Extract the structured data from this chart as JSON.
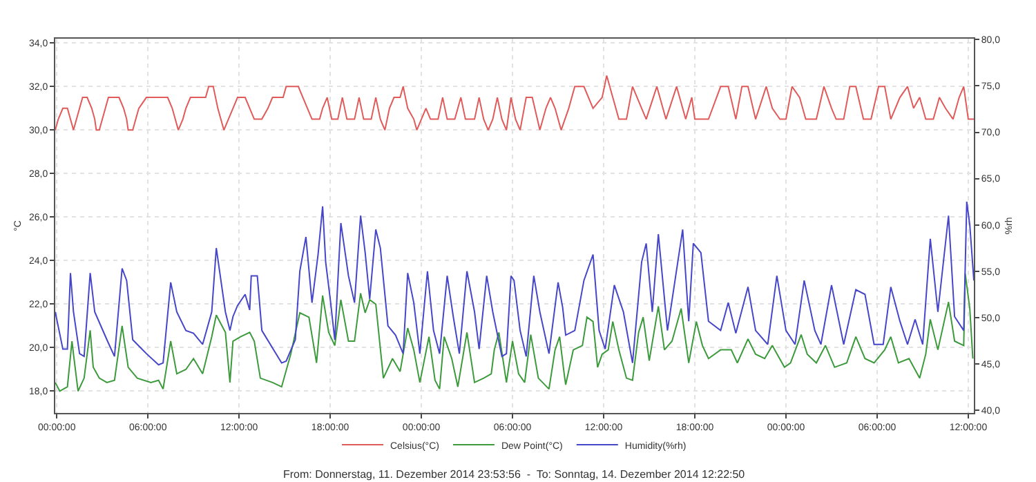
{
  "chart_data": {
    "type": "line",
    "ylabel": "°C",
    "y2label": "%rh",
    "xlim": [
      "2014-12-11T23:54",
      "2014-12-14T12:22"
    ],
    "xticks": [
      {
        "value": "2014-12-12T00:00",
        "label": "00:00:00"
      },
      {
        "value": "2014-12-12T06:00",
        "label": "06:00:00"
      },
      {
        "value": "2014-12-12T12:00",
        "label": "12:00:00"
      },
      {
        "value": "2014-12-12T18:00",
        "label": "18:00:00"
      },
      {
        "value": "2014-12-13T00:00",
        "label": "00:00:00"
      },
      {
        "value": "2014-12-13T06:00",
        "label": "06:00:00"
      },
      {
        "value": "2014-12-13T12:00",
        "label": "12:00:00"
      },
      {
        "value": "2014-12-13T18:00",
        "label": "18:00:00"
      },
      {
        "value": "2014-12-14T00:00",
        "label": "00:00:00"
      },
      {
        "value": "2014-12-14T06:00",
        "label": "06:00:00"
      },
      {
        "value": "2014-12-14T12:00",
        "label": "12:00:00"
      }
    ],
    "ylim": [
      17.0,
      34.2
    ],
    "yticks": [
      {
        "value": 18,
        "label": "18,0"
      },
      {
        "value": 20,
        "label": "20,0"
      },
      {
        "value": 22,
        "label": "22,0"
      },
      {
        "value": 24,
        "label": "24,0"
      },
      {
        "value": 26,
        "label": "26,0"
      },
      {
        "value": 28,
        "label": "28,0"
      },
      {
        "value": 30,
        "label": "30,0"
      },
      {
        "value": 32,
        "label": "32,0"
      },
      {
        "value": 34,
        "label": "34,0"
      }
    ],
    "y2lim": [
      39.7,
      80.1
    ],
    "y2ticks": [
      {
        "value": 40,
        "label": "40,0"
      },
      {
        "value": 45,
        "label": "45,0"
      },
      {
        "value": 50,
        "label": "50,0"
      },
      {
        "value": 55,
        "label": "55,0"
      },
      {
        "value": 60,
        "label": "60,0"
      },
      {
        "value": 65,
        "label": "65,0"
      },
      {
        "value": 70,
        "label": "70,0"
      },
      {
        "value": 75,
        "label": "75,0"
      },
      {
        "value": 80,
        "label": "80,0"
      }
    ],
    "grid": true,
    "legend": "bottom",
    "annotations": [
      "From: Donnerstag, 11. Dezember 2014 23:53:56  -  To: Sonntag, 14. Dezember 2014 12:22:50"
    ],
    "series": [
      {
        "name": "Celsius(°C)",
        "color": "#e05a5a",
        "x": [
          "2014-12-11T23:54",
          "2014-12-12T00:06",
          "2014-12-12T00:24",
          "2014-12-12T00:42",
          "2014-12-12T00:54",
          "2014-12-12T01:06",
          "2014-12-12T01:18",
          "2014-12-12T01:30",
          "2014-12-12T01:42",
          "2014-12-12T02:00",
          "2014-12-12T02:18",
          "2014-12-12T02:30",
          "2014-12-12T02:36",
          "2014-12-12T02:48",
          "2014-12-12T03:00",
          "2014-12-12T03:12",
          "2014-12-12T03:24",
          "2014-12-12T04:06",
          "2014-12-12T04:24",
          "2014-12-12T04:36",
          "2014-12-12T04:42",
          "2014-12-12T05:00",
          "2014-12-12T05:12",
          "2014-12-12T05:24",
          "2014-12-12T05:54",
          "2014-12-12T07:18",
          "2014-12-12T07:36",
          "2014-12-12T07:48",
          "2014-12-12T08:00",
          "2014-12-12T08:18",
          "2014-12-12T08:30",
          "2014-12-12T08:48",
          "2014-12-12T09:48",
          "2014-12-12T10:00",
          "2014-12-12T10:18",
          "2014-12-12T10:36",
          "2014-12-12T11:00",
          "2014-12-12T11:18",
          "2014-12-12T11:36",
          "2014-12-12T11:54",
          "2014-12-12T12:24",
          "2014-12-12T12:42",
          "2014-12-12T13:00",
          "2014-12-12T13:30",
          "2014-12-12T13:54",
          "2014-12-12T14:12",
          "2014-12-12T14:54",
          "2014-12-12T15:06",
          "2014-12-12T15:54",
          "2014-12-12T16:12",
          "2014-12-12T16:30",
          "2014-12-12T16:48",
          "2014-12-12T17:18",
          "2014-12-12T17:30",
          "2014-12-12T17:48",
          "2014-12-12T18:06",
          "2014-12-12T18:30",
          "2014-12-12T18:48",
          "2014-12-12T19:06",
          "2014-12-12T19:36",
          "2014-12-12T19:54",
          "2014-12-12T20:12",
          "2014-12-12T20:42",
          "2014-12-12T21:00",
          "2014-12-12T21:18",
          "2014-12-12T21:36",
          "2014-12-12T21:54",
          "2014-12-12T22:12",
          "2014-12-12T22:36",
          "2014-12-12T22:48",
          "2014-12-12T23:06",
          "2014-12-12T23:30",
          "2014-12-12T23:42",
          "2014-12-13T00:00",
          "2014-12-13T00:18",
          "2014-12-13T00:36",
          "2014-12-13T01:06",
          "2014-12-13T01:24",
          "2014-12-13T01:42",
          "2014-12-13T02:12",
          "2014-12-13T02:36",
          "2014-12-13T02:54",
          "2014-12-13T03:30",
          "2014-12-13T03:48",
          "2014-12-13T04:06",
          "2014-12-13T04:24",
          "2014-12-13T04:42",
          "2014-12-13T05:00",
          "2014-12-13T05:18",
          "2014-12-13T05:36",
          "2014-12-13T05:54",
          "2014-12-13T06:12",
          "2014-12-13T06:30",
          "2014-12-13T06:54",
          "2014-12-13T07:18",
          "2014-12-13T07:48",
          "2014-12-13T08:12",
          "2014-12-13T08:30",
          "2014-12-13T08:48",
          "2014-12-13T09:12",
          "2014-12-13T09:42",
          "2014-12-13T10:06",
          "2014-12-13T10:42",
          "2014-12-13T11:18",
          "2014-12-13T11:54",
          "2014-12-13T12:12",
          "2014-12-13T13:00",
          "2014-12-13T13:30",
          "2014-12-13T13:54",
          "2014-12-13T14:48",
          "2014-12-13T15:30",
          "2014-12-13T16:06",
          "2014-12-13T16:48",
          "2014-12-13T17:24",
          "2014-12-13T17:48",
          "2014-12-13T18:00",
          "2014-12-13T18:54",
          "2014-12-13T19:42",
          "2014-12-13T20:12",
          "2014-12-13T20:42",
          "2014-12-13T21:06",
          "2014-12-13T21:30",
          "2014-12-13T22:00",
          "2014-12-13T22:42",
          "2014-12-13T23:06",
          "2014-12-13T23:36",
          "2014-12-14T00:00",
          "2014-12-14T00:24",
          "2014-12-14T00:54",
          "2014-12-14T01:18",
          "2014-12-14T02:00",
          "2014-12-14T02:30",
          "2014-12-14T03:00",
          "2014-12-14T03:18",
          "2014-12-14T03:48",
          "2014-12-14T04:12",
          "2014-12-14T04:36",
          "2014-12-14T05:06",
          "2014-12-14T05:36",
          "2014-12-14T06:06",
          "2014-12-14T06:30",
          "2014-12-14T06:54",
          "2014-12-14T07:30",
          "2014-12-14T08:00",
          "2014-12-14T08:24",
          "2014-12-14T08:48",
          "2014-12-14T09:12",
          "2014-12-14T09:42",
          "2014-12-14T10:06",
          "2014-12-14T10:30",
          "2014-12-14T11:00",
          "2014-12-14T11:24",
          "2014-12-14T11:42",
          "2014-12-14T12:00",
          "2014-12-14T12:22"
        ],
        "values": [
          30.0,
          30.5,
          31.0,
          31.0,
          30.5,
          30.0,
          30.5,
          31.0,
          31.5,
          31.5,
          31.0,
          30.5,
          30.0,
          30.0,
          30.5,
          31.0,
          31.5,
          31.5,
          31.0,
          30.5,
          30.0,
          30.0,
          30.5,
          31.0,
          31.5,
          31.5,
          31.0,
          30.5,
          30.0,
          30.5,
          31.0,
          31.5,
          31.5,
          32.0,
          32.0,
          31.0,
          30.0,
          30.5,
          31.0,
          31.5,
          31.5,
          31.0,
          30.5,
          30.5,
          31.0,
          31.5,
          31.5,
          32.0,
          32.0,
          31.5,
          31.0,
          30.5,
          30.5,
          31.0,
          31.5,
          30.5,
          30.5,
          31.5,
          30.5,
          30.5,
          31.5,
          30.5,
          30.5,
          31.5,
          30.5,
          30.0,
          31.0,
          31.5,
          31.5,
          32.0,
          31.0,
          30.5,
          30.0,
          30.5,
          31.0,
          30.5,
          30.5,
          31.5,
          30.5,
          30.5,
          31.5,
          30.5,
          30.5,
          31.5,
          30.5,
          30.0,
          30.5,
          31.5,
          30.5,
          30.0,
          31.5,
          30.5,
          30.0,
          31.5,
          31.5,
          30.0,
          31.0,
          31.5,
          31.0,
          30.0,
          31.0,
          32.0,
          32.0,
          31.0,
          31.5,
          32.5,
          30.5,
          30.5,
          32.0,
          30.5,
          32.0,
          30.5,
          32.0,
          30.5,
          31.5,
          30.5,
          30.5,
          32.0,
          32.0,
          30.5,
          32.0,
          32.0,
          30.5,
          32.0,
          31.0,
          30.5,
          30.5,
          32.0,
          31.5,
          30.5,
          30.5,
          32.0,
          31.0,
          30.5,
          30.5,
          32.0,
          32.0,
          30.5,
          30.5,
          32.0,
          32.0,
          30.5,
          31.5,
          32.0,
          31.0,
          31.5,
          30.5,
          30.5,
          31.5,
          31.0,
          30.5,
          31.5,
          32.0,
          30.5,
          30.5
        ]
      },
      {
        "name": "Dew Point(°C)",
        "color": "#3c9a3c",
        "x": [
          "2014-12-11T23:54",
          "2014-12-12T00:12",
          "2014-12-12T00:42",
          "2014-12-12T01:00",
          "2014-12-12T01:06",
          "2014-12-12T01:24",
          "2014-12-12T01:48",
          "2014-12-12T02:12",
          "2014-12-12T02:24",
          "2014-12-12T02:48",
          "2014-12-12T03:18",
          "2014-12-12T03:48",
          "2014-12-12T04:18",
          "2014-12-12T04:42",
          "2014-12-12T05:18",
          "2014-12-12T06:12",
          "2014-12-12T06:42",
          "2014-12-12T07:00",
          "2014-12-12T07:30",
          "2014-12-12T07:54",
          "2014-12-12T08:30",
          "2014-12-12T09:00",
          "2014-12-12T09:36",
          "2014-12-12T10:12",
          "2014-12-12T10:30",
          "2014-12-12T11:06",
          "2014-12-12T11:24",
          "2014-12-12T11:36",
          "2014-12-12T12:06",
          "2014-12-12T12:42",
          "2014-12-12T13:00",
          "2014-12-12T13:24",
          "2014-12-12T14:12",
          "2014-12-12T14:48",
          "2014-12-12T15:24",
          "2014-12-12T16:00",
          "2014-12-12T16:36",
          "2014-12-12T17:06",
          "2014-12-12T17:30",
          "2014-12-12T17:54",
          "2014-12-12T18:18",
          "2014-12-12T18:42",
          "2014-12-12T19:12",
          "2014-12-12T19:36",
          "2014-12-12T20:00",
          "2014-12-12T20:18",
          "2014-12-12T20:36",
          "2014-12-12T21:00",
          "2014-12-12T21:30",
          "2014-12-12T22:06",
          "2014-12-12T22:36",
          "2014-12-12T23:06",
          "2014-12-12T23:30",
          "2014-12-12T23:54",
          "2014-12-13T00:30",
          "2014-12-13T00:54",
          "2014-12-13T01:12",
          "2014-12-13T01:30",
          "2014-12-13T02:00",
          "2014-12-13T02:24",
          "2014-12-13T03:00",
          "2014-12-13T03:30",
          "2014-12-13T04:06",
          "2014-12-13T04:36",
          "2014-12-13T04:48",
          "2014-12-13T05:06",
          "2014-12-13T05:36",
          "2014-12-13T06:00",
          "2014-12-13T06:24",
          "2014-12-13T06:48",
          "2014-12-13T07:12",
          "2014-12-13T07:42",
          "2014-12-13T08:24",
          "2014-12-13T08:48",
          "2014-12-13T09:06",
          "2014-12-13T09:24",
          "2014-12-13T09:30",
          "2014-12-13T10:00",
          "2014-12-13T10:36",
          "2014-12-13T10:54",
          "2014-12-13T11:18",
          "2014-12-13T11:36",
          "2014-12-13T11:54",
          "2014-12-13T12:18",
          "2014-12-13T12:36",
          "2014-12-13T13:00",
          "2014-12-13T13:30",
          "2014-12-13T13:54",
          "2014-12-13T14:18",
          "2014-12-13T14:36",
          "2014-12-13T15:00",
          "2014-12-13T15:36",
          "2014-12-13T16:00",
          "2014-12-13T16:30",
          "2014-12-13T17:06",
          "2014-12-13T17:36",
          "2014-12-13T18:06",
          "2014-12-13T18:30",
          "2014-12-13T18:54",
          "2014-12-13T19:42",
          "2014-12-13T20:24",
          "2014-12-13T20:48",
          "2014-12-13T21:30",
          "2014-12-13T22:00",
          "2014-12-13T22:36",
          "2014-12-13T23:06",
          "2014-12-13T23:54",
          "2014-12-14T00:18",
          "2014-12-14T01:00",
          "2014-12-14T01:24",
          "2014-12-14T02:00",
          "2014-12-14T02:36",
          "2014-12-14T03:12",
          "2014-12-14T04:00",
          "2014-12-14T04:36",
          "2014-12-14T05:12",
          "2014-12-14T05:48",
          "2014-12-14T06:30",
          "2014-12-14T06:54",
          "2014-12-14T07:24",
          "2014-12-14T08:06",
          "2014-12-14T08:48",
          "2014-12-14T09:12",
          "2014-12-14T09:30",
          "2014-12-14T10:00",
          "2014-12-14T10:42",
          "2014-12-14T11:06",
          "2014-12-14T11:42",
          "2014-12-14T11:48",
          "2014-12-14T12:06",
          "2014-12-14T12:18"
        ],
        "values": [
          18.4,
          18.0,
          18.2,
          20.3,
          19.7,
          18.0,
          18.6,
          20.8,
          19.1,
          18.6,
          18.4,
          18.5,
          21.0,
          19.1,
          18.6,
          18.4,
          18.5,
          18.1,
          20.3,
          18.8,
          19.0,
          19.5,
          18.8,
          20.5,
          21.5,
          20.7,
          18.4,
          20.3,
          20.5,
          20.7,
          20.3,
          18.6,
          18.4,
          18.2,
          19.7,
          21.6,
          21.4,
          19.3,
          22.4,
          20.7,
          20.1,
          22.2,
          20.3,
          20.3,
          22.5,
          21.6,
          22.2,
          22.0,
          18.6,
          19.5,
          18.9,
          20.9,
          19.9,
          18.4,
          20.5,
          18.5,
          18.1,
          20.5,
          19.5,
          18.2,
          20.7,
          18.4,
          18.6,
          18.8,
          19.9,
          20.7,
          18.4,
          20.3,
          18.8,
          18.4,
          20.6,
          18.6,
          18.1,
          19.9,
          20.5,
          18.8,
          18.3,
          19.9,
          20.1,
          21.4,
          21.2,
          19.1,
          19.7,
          19.9,
          21.2,
          19.9,
          18.6,
          18.5,
          20.7,
          21.4,
          19.4,
          21.9,
          19.9,
          20.3,
          21.8,
          19.3,
          21.2,
          20.1,
          19.5,
          19.9,
          19.9,
          19.3,
          20.4,
          19.7,
          19.5,
          20.1,
          19.1,
          19.3,
          20.6,
          19.7,
          19.3,
          20.1,
          19.1,
          19.3,
          20.5,
          19.5,
          19.3,
          19.9,
          20.5,
          19.3,
          19.5,
          18.6,
          19.7,
          21.3,
          19.9,
          22.1,
          20.3,
          20.1,
          23.4,
          21.8,
          19.5
        ]
      },
      {
        "name": "Humidity(%rh)",
        "color": "#4646c8",
        "axis": "y2",
        "x": [
          "2014-12-11T23:54",
          "2014-12-12T00:24",
          "2014-12-12T00:42",
          "2014-12-12T00:54",
          "2014-12-12T01:06",
          "2014-12-12T01:30",
          "2014-12-12T01:48",
          "2014-12-12T02:12",
          "2014-12-12T02:30",
          "2014-12-12T03:18",
          "2014-12-12T03:48",
          "2014-12-12T04:18",
          "2014-12-12T04:36",
          "2014-12-12T05:00",
          "2014-12-12T05:54",
          "2014-12-12T06:42",
          "2014-12-12T07:00",
          "2014-12-12T07:30",
          "2014-12-12T07:54",
          "2014-12-12T08:30",
          "2014-12-12T09:00",
          "2014-12-12T09:36",
          "2014-12-12T10:12",
          "2014-12-12T10:30",
          "2014-12-12T11:06",
          "2014-12-12T11:24",
          "2014-12-12T11:36",
          "2014-12-12T11:54",
          "2014-12-12T12:24",
          "2014-12-12T12:42",
          "2014-12-12T12:48",
          "2014-12-12T13:12",
          "2014-12-12T13:30",
          "2014-12-12T14:48",
          "2014-12-12T15:06",
          "2014-12-12T15:42",
          "2014-12-12T16:00",
          "2014-12-12T16:24",
          "2014-12-12T16:48",
          "2014-12-12T17:12",
          "2014-12-12T17:30",
          "2014-12-12T17:42",
          "2014-12-12T18:00",
          "2014-12-12T18:18",
          "2014-12-12T18:42",
          "2014-12-12T19:12",
          "2014-12-12T19:36",
          "2014-12-12T20:00",
          "2014-12-12T20:18",
          "2014-12-12T20:36",
          "2014-12-12T21:00",
          "2014-12-12T21:18",
          "2014-12-12T21:48",
          "2014-12-12T22:18",
          "2014-12-12T22:48",
          "2014-12-12T23:06",
          "2014-12-12T23:30",
          "2014-12-12T23:54",
          "2014-12-13T00:24",
          "2014-12-13T00:48",
          "2014-12-13T01:12",
          "2014-12-13T01:42",
          "2014-12-13T02:06",
          "2014-12-13T02:30",
          "2014-12-13T03:00",
          "2014-12-13T03:30",
          "2014-12-13T03:48",
          "2014-12-13T04:18",
          "2014-12-13T04:42",
          "2014-12-13T05:18",
          "2014-12-13T05:36",
          "2014-12-13T05:54",
          "2014-12-13T06:06",
          "2014-12-13T06:30",
          "2014-12-13T06:54",
          "2014-12-13T07:24",
          "2014-12-13T07:48",
          "2014-12-13T08:24",
          "2014-12-13T09:00",
          "2014-12-13T09:18",
          "2014-12-13T09:30",
          "2014-12-13T10:06",
          "2014-12-13T10:42",
          "2014-12-13T11:18",
          "2014-12-13T11:42",
          "2014-12-13T12:06",
          "2014-12-13T12:42",
          "2014-12-13T13:18",
          "2014-12-13T13:54",
          "2014-12-13T14:30",
          "2014-12-13T14:48",
          "2014-12-13T15:12",
          "2014-12-13T15:36",
          "2014-12-13T16:12",
          "2014-12-13T17:12",
          "2014-12-13T17:36",
          "2014-12-13T17:54",
          "2014-12-13T18:24",
          "2014-12-13T18:54",
          "2014-12-13T19:42",
          "2014-12-13T20:12",
          "2014-12-13T20:42",
          "2014-12-13T21:30",
          "2014-12-13T22:00",
          "2014-12-13T22:48",
          "2014-12-13T23:24",
          "2014-12-14T00:00",
          "2014-12-14T00:36",
          "2014-12-14T01:12",
          "2014-12-14T01:54",
          "2014-12-14T02:18",
          "2014-12-14T03:00",
          "2014-12-14T03:48",
          "2014-12-14T04:36",
          "2014-12-14T05:12",
          "2014-12-14T05:48",
          "2014-12-14T06:24",
          "2014-12-14T06:54",
          "2014-12-14T07:30",
          "2014-12-14T08:00",
          "2014-12-14T08:30",
          "2014-12-14T09:00",
          "2014-12-14T09:30",
          "2014-12-14T10:00",
          "2014-12-14T10:42",
          "2014-12-14T11:06",
          "2014-12-14T11:42",
          "2014-12-14T11:54",
          "2014-12-14T12:06",
          "2014-12-14T12:22"
        ],
        "values": [
          50.6,
          46.6,
          46.6,
          54.8,
          50.6,
          46.1,
          45.8,
          54.8,
          50.6,
          47.6,
          45.8,
          55.3,
          54.0,
          47.6,
          46.1,
          44.9,
          45.1,
          53.8,
          50.6,
          48.6,
          48.3,
          47.1,
          50.6,
          57.5,
          50.6,
          48.6,
          50.1,
          51.3,
          52.5,
          50.8,
          54.5,
          54.5,
          48.6,
          45.1,
          45.3,
          47.6,
          55.0,
          58.7,
          51.6,
          56.8,
          62.0,
          56.0,
          52.0,
          47.6,
          60.2,
          54.5,
          51.6,
          61.0,
          57.0,
          52.0,
          59.5,
          57.5,
          49.1,
          48.1,
          46.1,
          54.8,
          51.6,
          46.1,
          55.0,
          48.6,
          46.1,
          54.5,
          50.1,
          46.1,
          55.0,
          50.6,
          46.6,
          54.5,
          50.6,
          45.8,
          46.1,
          54.5,
          54.0,
          48.6,
          45.8,
          54.5,
          50.6,
          46.1,
          53.8,
          51.1,
          48.1,
          48.6,
          54.0,
          56.8,
          48.6,
          46.6,
          53.5,
          50.6,
          45.1,
          56.0,
          58.0,
          50.6,
          59.0,
          48.6,
          59.5,
          49.6,
          58.0,
          57.0,
          49.6,
          48.6,
          51.6,
          48.3,
          53.3,
          48.6,
          47.1,
          54.5,
          48.6,
          47.1,
          54.0,
          48.6,
          47.1,
          53.5,
          47.1,
          53.0,
          52.5,
          47.1,
          47.1,
          53.3,
          49.6,
          47.1,
          49.8,
          47.1,
          58.5,
          50.6,
          61.0,
          50.1,
          48.6,
          62.5,
          60.0,
          54.0
        ]
      }
    ]
  }
}
